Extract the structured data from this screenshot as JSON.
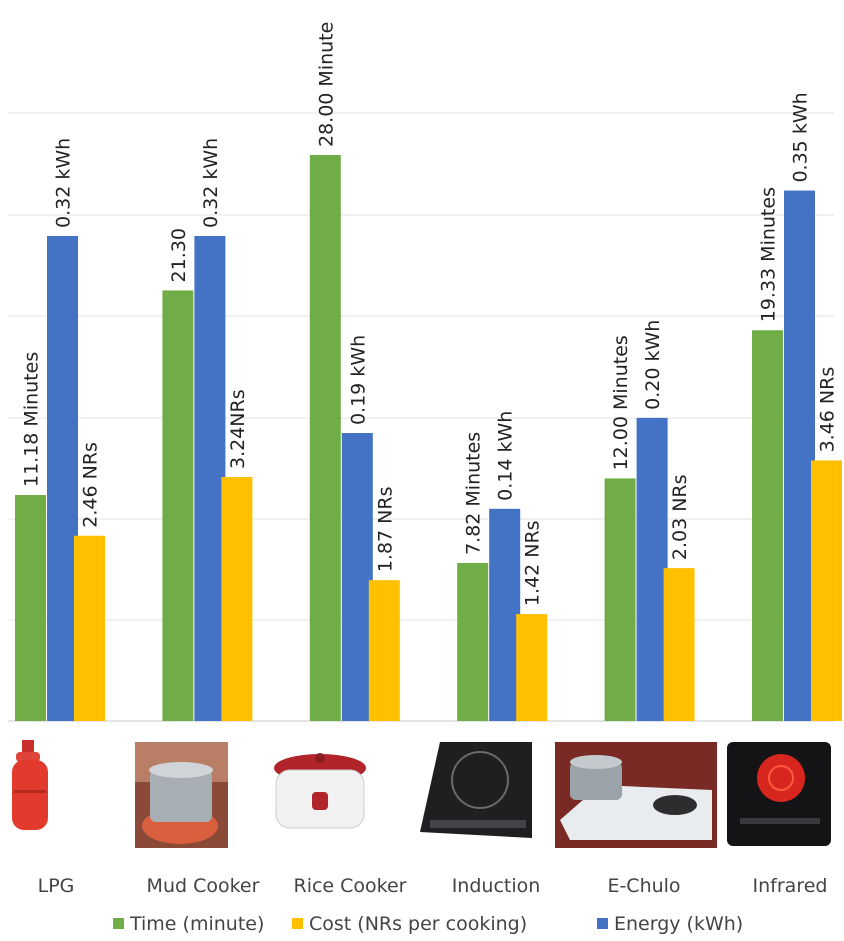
{
  "chart_data": {
    "type": "bar",
    "categories": [
      "LPG",
      "Mud Cooker",
      "Rice Cooker",
      "Induction",
      "E-Chulo",
      "Infrared"
    ],
    "series": [
      {
        "name": "Time (minute)",
        "color": "#70ad47",
        "values": [
          11.18,
          21.3,
          28.0,
          7.82,
          12.0,
          19.33
        ],
        "labels": [
          "11.18 Minutes",
          "21.30",
          "28.00 Minute",
          "7.82 Minutes",
          "12.00 Minutes",
          "19.33 Minutes"
        ]
      },
      {
        "name": "Energy (kWh)",
        "color": "#4472c4",
        "values": [
          0.32,
          0.32,
          0.19,
          0.14,
          0.2,
          0.35
        ],
        "labels": [
          "0.32 kWh",
          "0.32 kWh",
          "0.19 kWh",
          "0.14 kWh",
          "0.20 kWh",
          "0.35 kWh"
        ]
      },
      {
        "name": "Cost (NRs per cooking)",
        "color": "#ffc000",
        "values": [
          2.46,
          3.24,
          1.87,
          1.42,
          2.03,
          3.46
        ],
        "labels": [
          "2.46 NRs",
          "3.24NRs",
          "1.87 NRs",
          "1.42 NRs",
          "2.03 NRs",
          "3.46 NRs"
        ]
      }
    ],
    "legend": {
      "placement": "bottom",
      "items": [
        "Time (minute)",
        "Cost (NRs per cooking)",
        "Energy (kWh)"
      ]
    },
    "grid": true,
    "title": "",
    "xlabel": "",
    "ylabel": "",
    "images": [
      "lpg-cylinder-icon",
      "mud-cooker-icon",
      "rice-cooker-icon",
      "induction-cooktop-icon",
      "e-chulo-icon",
      "infrared-cooktop-icon"
    ]
  }
}
